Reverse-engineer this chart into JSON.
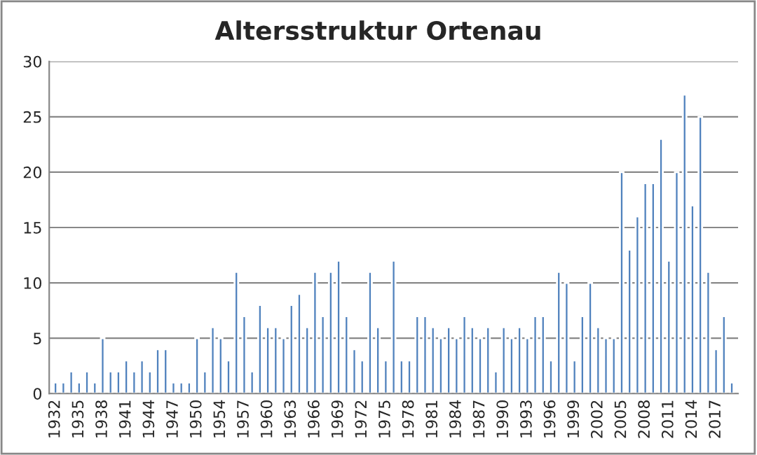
{
  "chart_data": {
    "type": "bar",
    "title": "Altersstruktur Ortenau",
    "categories": [
      "1932",
      null,
      null,
      "1935",
      null,
      null,
      "1938",
      null,
      null,
      "1941",
      null,
      null,
      "1944",
      null,
      null,
      "1947",
      null,
      null,
      "1950",
      null,
      null,
      "1954",
      null,
      null,
      "1957",
      null,
      null,
      "1960",
      null,
      null,
      "1963",
      null,
      null,
      "1966",
      null,
      null,
      "1969",
      null,
      null,
      "1972",
      null,
      null,
      "1975",
      null,
      null,
      "1978",
      null,
      null,
      "1981",
      null,
      null,
      "1984",
      null,
      null,
      "1987",
      null,
      null,
      "1990",
      null,
      null,
      "1993",
      null,
      null,
      "1996",
      null,
      null,
      "1999",
      null,
      null,
      "2002",
      null,
      null,
      "2005",
      null,
      null,
      "2008",
      null,
      null,
      "2011",
      null,
      null,
      "2014",
      null,
      null,
      "2017",
      null,
      null
    ],
    "values": [
      1,
      1,
      2,
      1,
      2,
      1,
      5,
      2,
      2,
      3,
      2,
      3,
      2,
      4,
      4,
      1,
      1,
      1,
      5,
      2,
      6,
      5,
      3,
      11,
      7,
      2,
      8,
      6,
      6,
      5,
      8,
      9,
      6,
      11,
      7,
      11,
      12,
      7,
      4,
      3,
      11,
      6,
      3,
      12,
      3,
      3,
      7,
      7,
      6,
      5,
      6,
      5,
      7,
      6,
      5,
      6,
      2,
      6,
      5,
      6,
      5,
      7,
      7,
      3,
      11,
      10,
      3,
      7,
      10,
      6,
      5,
      5,
      20,
      13,
      16,
      19,
      19,
      23,
      12,
      20,
      27,
      17,
      25,
      11,
      4,
      7,
      1
    ],
    "color": "#4f81bd",
    "ylim": [
      0,
      30
    ],
    "yticks": [
      0,
      5,
      10,
      15,
      20,
      25,
      30
    ],
    "grid": "y"
  }
}
